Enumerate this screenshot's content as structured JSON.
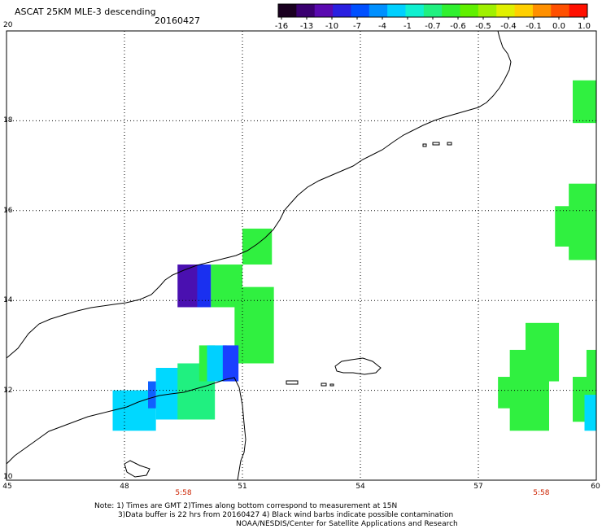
{
  "header": {
    "title": "ASCAT 25KM MLE-3 descending",
    "date": "20160427"
  },
  "colorbar": {
    "ticks": [
      "-16",
      "-13",
      "-10",
      "-7",
      "-4",
      "-1",
      "-0.7",
      "-0.6",
      "-0.5",
      "-0.4",
      "-0.1",
      "0.0",
      "1.0"
    ],
    "colors": [
      "#1a0020",
      "#3a0070",
      "#5a0ab0",
      "#2a20e0",
      "#0050ff",
      "#0090ff",
      "#00d0ff",
      "#10f0d0",
      "#20f080",
      "#30f030",
      "#60f000",
      "#a0f000",
      "#e0f000",
      "#ffd000",
      "#ff9000",
      "#ff5000",
      "#ff1000"
    ]
  },
  "axes": {
    "x_ticks": [
      "45",
      "48",
      "51",
      "54",
      "57",
      "60"
    ],
    "y_ticks": [
      "10",
      "12",
      "14",
      "16",
      "18",
      "20"
    ],
    "x_range": [
      45,
      60
    ],
    "y_range": [
      10,
      20
    ]
  },
  "time_labels": [
    {
      "text": "5:58",
      "lon": 49.5
    },
    {
      "text": "5:58",
      "lon": 58.6
    }
  ],
  "swath_cells": [
    {
      "lon": [
        49.35,
        50.0
      ],
      "lat": [
        13.85,
        14.8
      ],
      "color": "#4a10b0"
    },
    {
      "lon": [
        49.85,
        50.2
      ],
      "lat": [
        13.85,
        14.8
      ],
      "color": "#1a30f0"
    },
    {
      "lon": [
        50.2,
        51.0
      ],
      "lat": [
        13.85,
        14.8
      ],
      "color": "#30f040"
    },
    {
      "lon": [
        50.8,
        51.8
      ],
      "lat": [
        12.6,
        14.3
      ],
      "color": "#30f040"
    },
    {
      "lon": [
        51.0,
        51.75
      ],
      "lat": [
        14.8,
        15.6
      ],
      "color": "#30f040"
    },
    {
      "lon": [
        48.8,
        49.5
      ],
      "lat": [
        11.35,
        12.5
      ],
      "color": "#00d8ff"
    },
    {
      "lon": [
        49.35,
        50.3
      ],
      "lat": [
        11.35,
        12.6
      ],
      "color": "#20f080"
    },
    {
      "lon": [
        49.9,
        50.3
      ],
      "lat": [
        12.2,
        13.0
      ],
      "color": "#30f040"
    },
    {
      "lon": [
        50.1,
        50.6
      ],
      "lat": [
        12.2,
        13.0
      ],
      "color": "#00d0ff"
    },
    {
      "lon": [
        50.5,
        50.9
      ],
      "lat": [
        12.2,
        13.0
      ],
      "color": "#1a40ff"
    },
    {
      "lon": [
        47.7,
        48.8
      ],
      "lat": [
        11.1,
        12.0
      ],
      "color": "#00d8ff"
    },
    {
      "lon": [
        48.6,
        48.8
      ],
      "lat": [
        11.6,
        12.2
      ],
      "color": "#1060ff"
    },
    {
      "lon": [
        59.4,
        60.0
      ],
      "lat": [
        17.95,
        18.9
      ],
      "color": "#30f040"
    },
    {
      "lon": [
        58.95,
        60.0
      ],
      "lat": [
        15.2,
        16.1
      ],
      "color": "#30f040"
    },
    {
      "lon": [
        59.3,
        60.0
      ],
      "lat": [
        14.9,
        16.6
      ],
      "color": "#30f040"
    },
    {
      "lon": [
        58.2,
        59.05
      ],
      "lat": [
        12.2,
        13.5
      ],
      "color": "#30f040"
    },
    {
      "lon": [
        57.8,
        58.8
      ],
      "lat": [
        11.1,
        12.9
      ],
      "color": "#30f040"
    },
    {
      "lon": [
        57.5,
        58.6
      ],
      "lat": [
        11.6,
        12.3
      ],
      "color": "#30f040"
    },
    {
      "lon": [
        59.4,
        60.0
      ],
      "lat": [
        11.3,
        12.3
      ],
      "color": "#30f040"
    },
    {
      "lon": [
        59.7,
        60.0
      ],
      "lat": [
        11.1,
        11.9
      ],
      "color": "#00d8ff"
    },
    {
      "lon": [
        59.75,
        60.0
      ],
      "lat": [
        12.2,
        12.9
      ],
      "color": "#30f040"
    }
  ],
  "footnote": {
    "line1": "Note: 1) Times are GMT 2)Times along bottom correspond to measurement at 15N",
    "line2": "3)Data buffer is 22 hrs from 20160427 4) Black wind barbs indicate possible contamination",
    "line3": "NOAA/NESDIS/Center for Satellite Applications and Research"
  }
}
